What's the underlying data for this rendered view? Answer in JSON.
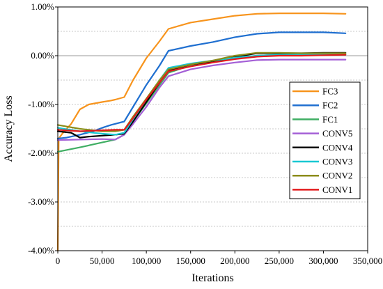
{
  "chart_data": {
    "type": "line",
    "title": "",
    "xlabel": "Iterations",
    "ylabel": "Accuracy Loss",
    "xlim": [
      0,
      350000
    ],
    "ylim": [
      -4.0,
      1.0
    ],
    "x_ticks": [
      0,
      50000,
      100000,
      150000,
      200000,
      250000,
      300000,
      350000
    ],
    "x_tick_labels": [
      "0",
      "50,000",
      "100,000",
      "150,000",
      "200,000",
      "250,000",
      "300,000",
      "350,000"
    ],
    "y_ticks": [
      -4.0,
      -3.0,
      -2.0,
      -1.0,
      0.0,
      1.0
    ],
    "y_tick_labels": [
      "-4.00%",
      "-3.00%",
      "-2.00%",
      "-1.00%",
      "0.00%",
      "1.00%"
    ],
    "grid": "dotted horizontal at half-steps, solid gray at 0.00%",
    "legend_position": "right",
    "series": [
      {
        "name": "FC3",
        "color": "#f7941d",
        "x": [
          0,
          1000,
          5000,
          15000,
          25000,
          35000,
          50000,
          60000,
          65000,
          75000,
          85000,
          100000,
          115000,
          125000,
          150000,
          175000,
          200000,
          225000,
          250000,
          275000,
          300000,
          325000
        ],
        "y": [
          -4.0,
          -1.7,
          -1.6,
          -1.4,
          -1.1,
          -1.0,
          -0.95,
          -0.92,
          -0.9,
          -0.85,
          -0.5,
          -0.05,
          0.3,
          0.55,
          0.68,
          0.75,
          0.82,
          0.86,
          0.87,
          0.87,
          0.87,
          0.86
        ]
      },
      {
        "name": "FC2",
        "color": "#1f6fd0",
        "x": [
          0,
          10000,
          25000,
          40000,
          50000,
          60000,
          75000,
          85000,
          100000,
          115000,
          125000,
          150000,
          175000,
          200000,
          225000,
          250000,
          275000,
          300000,
          325000
        ],
        "y": [
          -1.7,
          -1.68,
          -1.62,
          -1.55,
          -1.48,
          -1.42,
          -1.35,
          -1.05,
          -0.6,
          -0.2,
          0.1,
          0.2,
          0.28,
          0.38,
          0.45,
          0.48,
          0.48,
          0.48,
          0.46
        ]
      },
      {
        "name": "FC1",
        "color": "#3fae63",
        "x": [
          0,
          25000,
          50000,
          65000,
          75000,
          85000,
          100000,
          115000,
          125000,
          150000,
          175000,
          200000,
          225000,
          250000,
          275000,
          300000,
          325000
        ],
        "y": [
          -1.97,
          -1.88,
          -1.78,
          -1.72,
          -1.62,
          -1.35,
          -0.98,
          -0.6,
          -0.35,
          -0.2,
          -0.12,
          -0.05,
          0.0,
          0.02,
          0.02,
          0.02,
          0.02
        ]
      },
      {
        "name": "CONV5",
        "color": "#a45fd6",
        "x": [
          0,
          25000,
          50000,
          65000,
          75000,
          85000,
          100000,
          115000,
          125000,
          150000,
          175000,
          200000,
          225000,
          250000,
          275000,
          300000,
          325000
        ],
        "y": [
          -1.73,
          -1.72,
          -1.71,
          -1.72,
          -1.62,
          -1.4,
          -1.05,
          -0.65,
          -0.42,
          -0.28,
          -0.2,
          -0.14,
          -0.09,
          -0.08,
          -0.08,
          -0.08,
          -0.08
        ]
      },
      {
        "name": "CONV4",
        "color": "#000000",
        "x": [
          0,
          15000,
          25000,
          35000,
          50000,
          65000,
          75000,
          85000,
          100000,
          115000,
          125000,
          150000,
          175000,
          200000,
          225000,
          250000,
          275000,
          300000,
          325000
        ],
        "y": [
          -1.55,
          -1.58,
          -1.68,
          -1.66,
          -1.64,
          -1.62,
          -1.6,
          -1.35,
          -0.95,
          -0.55,
          -0.3,
          -0.18,
          -0.12,
          -0.02,
          0.05,
          0.05,
          0.05,
          0.06,
          0.06
        ]
      },
      {
        "name": "CONV3",
        "color": "#19c8d2",
        "x": [
          0,
          25000,
          50000,
          65000,
          75000,
          85000,
          100000,
          115000,
          125000,
          150000,
          175000,
          200000,
          225000,
          250000,
          275000,
          300000,
          325000
        ],
        "y": [
          -1.48,
          -1.55,
          -1.6,
          -1.62,
          -1.58,
          -1.3,
          -0.9,
          -0.5,
          -0.25,
          -0.16,
          -0.1,
          -0.04,
          0.0,
          0.02,
          0.02,
          0.03,
          0.03
        ]
      },
      {
        "name": "CONV2",
        "color": "#8c8c1a",
        "x": [
          0,
          25000,
          50000,
          65000,
          75000,
          85000,
          100000,
          115000,
          125000,
          150000,
          175000,
          200000,
          225000,
          250000,
          275000,
          300000,
          325000
        ],
        "y": [
          -1.42,
          -1.5,
          -1.55,
          -1.55,
          -1.52,
          -1.25,
          -0.88,
          -0.5,
          -0.28,
          -0.18,
          -0.1,
          0.0,
          0.06,
          0.06,
          0.05,
          0.05,
          0.05
        ]
      },
      {
        "name": "CONV1",
        "color": "#e31a1c",
        "x": [
          0,
          25000,
          50000,
          65000,
          75000,
          85000,
          100000,
          115000,
          125000,
          150000,
          175000,
          200000,
          225000,
          250000,
          275000,
          300000,
          325000
        ],
        "y": [
          -1.52,
          -1.55,
          -1.53,
          -1.52,
          -1.52,
          -1.28,
          -0.9,
          -0.55,
          -0.32,
          -0.22,
          -0.14,
          -0.07,
          -0.02,
          0.0,
          0.0,
          0.01,
          0.02
        ]
      }
    ]
  }
}
